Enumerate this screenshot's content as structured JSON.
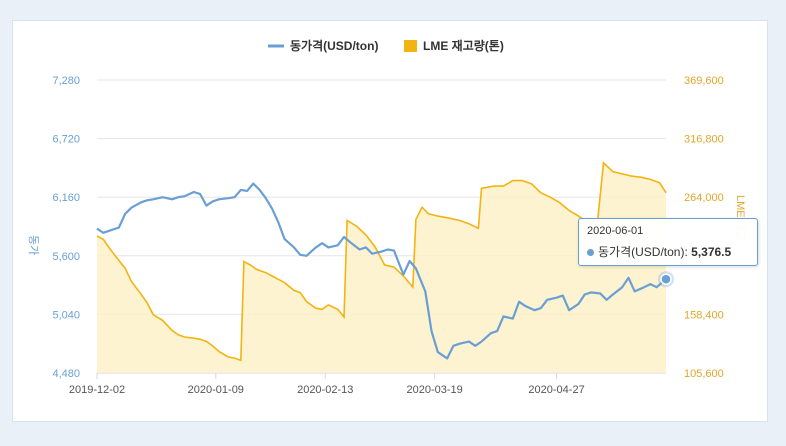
{
  "chart_data": {
    "type": "line",
    "legend": [
      {
        "name": "동가격(USD/ton)",
        "color": "#6a9fd4"
      },
      {
        "name": "LME 재고량(톤)",
        "color": "#f2b411"
      }
    ],
    "y_left": {
      "label": "동가",
      "ticks": [
        "7,280",
        "6,720",
        "6,160",
        "5,600",
        "5,040",
        "4,480"
      ],
      "range": [
        4480,
        7280
      ]
    },
    "y_right": {
      "label": "LME 재고",
      "ticks": [
        "369,600",
        "316,800",
        "264,000",
        "211,200",
        "158,400",
        "105,600"
      ],
      "range": [
        105600,
        369600
      ]
    },
    "x_ticks": [
      {
        "label": "2019-12-02",
        "date": "2019-12-02"
      },
      {
        "label": "2020-01-09",
        "date": "2020-01-09"
      },
      {
        "label": "2020-02-13",
        "date": "2020-02-13"
      },
      {
        "label": "2020-03-19",
        "date": "2020-03-19"
      },
      {
        "label": "2020-04-27",
        "date": "2020-04-27"
      }
    ],
    "x_range": [
      "2019-12-02",
      "2020-06-01"
    ],
    "series": [
      {
        "name": "동가격(USD/ton)",
        "color": "#6a9fd4",
        "points": [
          [
            "2019-12-02",
            5860
          ],
          [
            "2019-12-04",
            5820
          ],
          [
            "2019-12-06",
            5840
          ],
          [
            "2019-12-09",
            5870
          ],
          [
            "2019-12-11",
            6000
          ],
          [
            "2019-12-13",
            6060
          ],
          [
            "2019-12-16",
            6110
          ],
          [
            "2019-12-18",
            6130
          ],
          [
            "2019-12-20",
            6140
          ],
          [
            "2019-12-23",
            6160
          ],
          [
            "2019-12-26",
            6140
          ],
          [
            "2019-12-28",
            6160
          ],
          [
            "2019-12-30",
            6170
          ],
          [
            "2020-01-02",
            6210
          ],
          [
            "2020-01-04",
            6190
          ],
          [
            "2020-01-06",
            6080
          ],
          [
            "2020-01-08",
            6120
          ],
          [
            "2020-01-10",
            6140
          ],
          [
            "2020-01-13",
            6150
          ],
          [
            "2020-01-15",
            6160
          ],
          [
            "2020-01-17",
            6230
          ],
          [
            "2020-01-19",
            6220
          ],
          [
            "2020-01-21",
            6290
          ],
          [
            "2020-01-23",
            6230
          ],
          [
            "2020-01-25",
            6150
          ],
          [
            "2020-01-27",
            6050
          ],
          [
            "2020-01-29",
            5920
          ],
          [
            "2020-01-31",
            5760
          ],
          [
            "2020-02-03",
            5680
          ],
          [
            "2020-02-05",
            5610
          ],
          [
            "2020-02-07",
            5600
          ],
          [
            "2020-02-10",
            5680
          ],
          [
            "2020-02-12",
            5720
          ],
          [
            "2020-02-14",
            5680
          ],
          [
            "2020-02-17",
            5700
          ],
          [
            "2020-02-19",
            5780
          ],
          [
            "2020-02-21",
            5730
          ],
          [
            "2020-02-24",
            5660
          ],
          [
            "2020-02-26",
            5680
          ],
          [
            "2020-02-28",
            5620
          ],
          [
            "2020-03-02",
            5640
          ],
          [
            "2020-03-04",
            5660
          ],
          [
            "2020-03-06",
            5650
          ],
          [
            "2020-03-09",
            5420
          ],
          [
            "2020-03-11",
            5550
          ],
          [
            "2020-03-13",
            5480
          ],
          [
            "2020-03-16",
            5260
          ],
          [
            "2020-03-18",
            4880
          ],
          [
            "2020-03-20",
            4680
          ],
          [
            "2020-03-23",
            4620
          ],
          [
            "2020-03-25",
            4740
          ],
          [
            "2020-03-27",
            4760
          ],
          [
            "2020-03-30",
            4780
          ],
          [
            "2020-04-01",
            4740
          ],
          [
            "2020-04-03",
            4780
          ],
          [
            "2020-04-06",
            4860
          ],
          [
            "2020-04-08",
            4880
          ],
          [
            "2020-04-10",
            5020
          ],
          [
            "2020-04-13",
            5000
          ],
          [
            "2020-04-15",
            5160
          ],
          [
            "2020-04-17",
            5120
          ],
          [
            "2020-04-20",
            5080
          ],
          [
            "2020-04-22",
            5100
          ],
          [
            "2020-04-24",
            5180
          ],
          [
            "2020-04-27",
            5200
          ],
          [
            "2020-04-29",
            5220
          ],
          [
            "2020-05-01",
            5080
          ],
          [
            "2020-05-04",
            5140
          ],
          [
            "2020-05-06",
            5230
          ],
          [
            "2020-05-08",
            5250
          ],
          [
            "2020-05-11",
            5240
          ],
          [
            "2020-05-13",
            5180
          ],
          [
            "2020-05-15",
            5230
          ],
          [
            "2020-05-18",
            5300
          ],
          [
            "2020-05-20",
            5390
          ],
          [
            "2020-05-22",
            5260
          ],
          [
            "2020-05-25",
            5300
          ],
          [
            "2020-05-27",
            5330
          ],
          [
            "2020-05-29",
            5300
          ],
          [
            "2020-06-01",
            5376.5
          ]
        ]
      },
      {
        "name": "LME 재고량(톤)",
        "color": "#f2b411",
        "points": [
          [
            "2019-12-02",
            229000
          ],
          [
            "2019-12-04",
            226000
          ],
          [
            "2019-12-06",
            218000
          ],
          [
            "2019-12-09",
            207000
          ],
          [
            "2019-12-11",
            200000
          ],
          [
            "2019-12-13",
            188000
          ],
          [
            "2019-12-16",
            177000
          ],
          [
            "2019-12-18",
            169000
          ],
          [
            "2019-12-20",
            158000
          ],
          [
            "2019-12-23",
            153000
          ],
          [
            "2019-12-26",
            144000
          ],
          [
            "2019-12-28",
            140000
          ],
          [
            "2019-12-30",
            138000
          ],
          [
            "2020-01-02",
            137000
          ],
          [
            "2020-01-04",
            136000
          ],
          [
            "2020-01-06",
            134000
          ],
          [
            "2020-01-08",
            130000
          ],
          [
            "2020-01-10",
            125000
          ],
          [
            "2020-01-13",
            120000
          ],
          [
            "2020-01-15",
            119000
          ],
          [
            "2020-01-17",
            117000
          ],
          [
            "2020-01-18",
            206000
          ],
          [
            "2020-01-20",
            203000
          ],
          [
            "2020-01-22",
            199000
          ],
          [
            "2020-01-25",
            196000
          ],
          [
            "2020-01-27",
            193000
          ],
          [
            "2020-01-29",
            190000
          ],
          [
            "2020-01-31",
            187000
          ],
          [
            "2020-02-03",
            180000
          ],
          [
            "2020-02-05",
            178000
          ],
          [
            "2020-02-07",
            170000
          ],
          [
            "2020-02-10",
            164000
          ],
          [
            "2020-02-12",
            163000
          ],
          [
            "2020-02-14",
            167000
          ],
          [
            "2020-02-17",
            163000
          ],
          [
            "2020-02-19",
            156000
          ],
          [
            "2020-02-20",
            243000
          ],
          [
            "2020-02-23",
            238000
          ],
          [
            "2020-02-26",
            230000
          ],
          [
            "2020-02-29",
            219000
          ],
          [
            "2020-03-03",
            203000
          ],
          [
            "2020-03-06",
            201000
          ],
          [
            "2020-03-09",
            193000
          ],
          [
            "2020-03-12",
            183000
          ],
          [
            "2020-03-13",
            244000
          ],
          [
            "2020-03-15",
            255000
          ],
          [
            "2020-03-17",
            249000
          ],
          [
            "2020-03-20",
            247000
          ],
          [
            "2020-03-24",
            245000
          ],
          [
            "2020-03-27",
            243000
          ],
          [
            "2020-03-30",
            240000
          ],
          [
            "2020-04-02",
            236000
          ],
          [
            "2020-04-03",
            272000
          ],
          [
            "2020-04-07",
            274000
          ],
          [
            "2020-04-10",
            274000
          ],
          [
            "2020-04-13",
            279000
          ],
          [
            "2020-04-16",
            279000
          ],
          [
            "2020-04-19",
            276000
          ],
          [
            "2020-04-22",
            268000
          ],
          [
            "2020-04-25",
            264000
          ],
          [
            "2020-04-28",
            259000
          ],
          [
            "2020-05-01",
            252000
          ],
          [
            "2020-05-04",
            247000
          ],
          [
            "2020-05-07",
            241000
          ],
          [
            "2020-05-10",
            239000
          ],
          [
            "2020-05-12",
            295000
          ],
          [
            "2020-05-15",
            287000
          ],
          [
            "2020-05-18",
            285000
          ],
          [
            "2020-05-21",
            283000
          ],
          [
            "2020-05-24",
            282000
          ],
          [
            "2020-05-27",
            280000
          ],
          [
            "2020-05-30",
            277000
          ],
          [
            "2020-06-01",
            268000
          ]
        ]
      }
    ],
    "tooltip": {
      "date": "2020-06-01",
      "series": "동가격(USD/ton)",
      "value": "5,376.5",
      "value_numeric": 5376.5
    },
    "grid": true,
    "legend_position": "top"
  }
}
